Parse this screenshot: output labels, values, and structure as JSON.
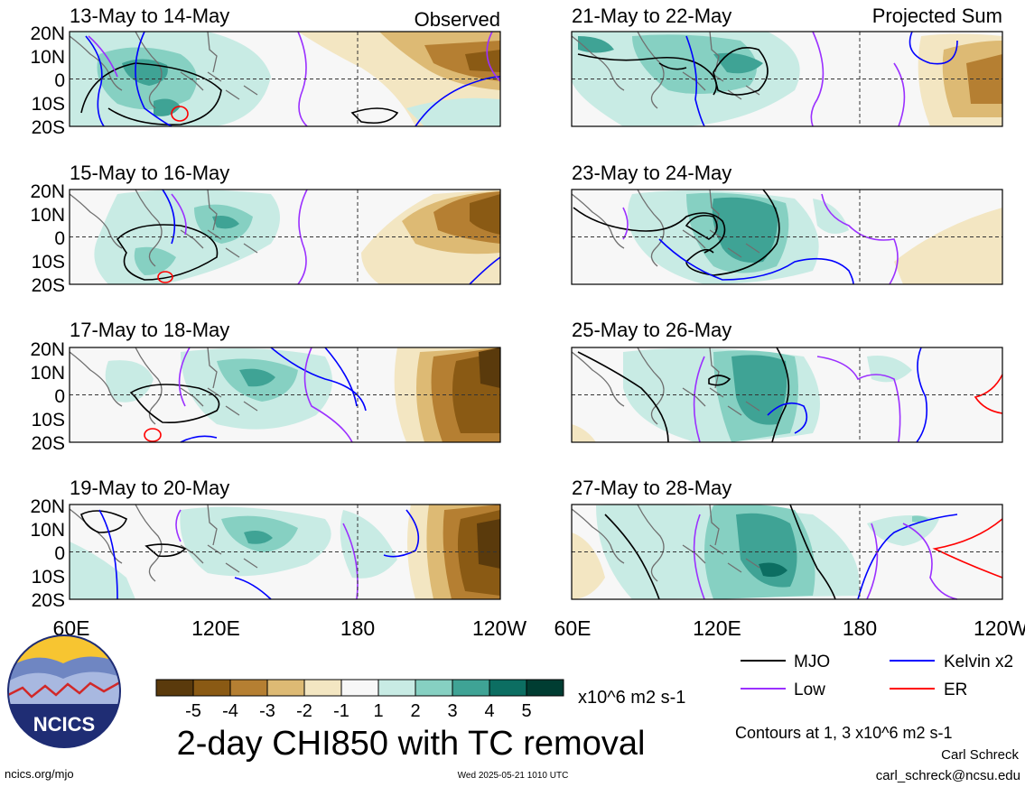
{
  "columns": [
    {
      "tag": "Observed",
      "panels": [
        {
          "date": "13-May to 14-May"
        },
        {
          "date": "15-May to 16-May"
        },
        {
          "date": "17-May to 18-May"
        },
        {
          "date": "19-May to 20-May"
        }
      ]
    },
    {
      "tag": "Projected Sum",
      "panels": [
        {
          "date": "21-May to 22-May"
        },
        {
          "date": "23-May to 24-May"
        },
        {
          "date": "25-May to 26-May"
        },
        {
          "date": "27-May to 28-May"
        }
      ]
    }
  ],
  "lat_ticks": [
    "20N",
    "10N",
    "0",
    "10S",
    "20S"
  ],
  "lon_ticks": [
    "60E",
    "120E",
    "180",
    "120W"
  ],
  "colorbar": {
    "labels": [
      "-5",
      "-4",
      "-3",
      "-2",
      "-1",
      "1",
      "2",
      "3",
      "4",
      "5"
    ],
    "colors": [
      "#5a3a0c",
      "#8a5a14",
      "#b57f32",
      "#ddba74",
      "#f3e6c2",
      "#f7f7f7",
      "#c8ebe4",
      "#86d0c2",
      "#3fa395",
      "#0c6e62",
      "#003d32"
    ],
    "units": "x10^6 m2 s-1"
  },
  "main_title": "2-day CHI850 with TC removal",
  "legend": [
    {
      "label": "MJO",
      "color": "#000000"
    },
    {
      "label": "Kelvin x2",
      "color": "#0000ff"
    },
    {
      "label": "Low",
      "color": "#9b30ff"
    },
    {
      "label": "ER",
      "color": "#ff0000"
    }
  ],
  "contour_note": "Contours at 1, 3 x10^6 m2 s-1",
  "author": "Carl Schreck",
  "email": "carl_schreck@ncsu.edu",
  "site": "ncics.org/mjo",
  "timestamp": "Wed 2025-05-21 1010 UTC",
  "logo_text": "NCICS"
}
